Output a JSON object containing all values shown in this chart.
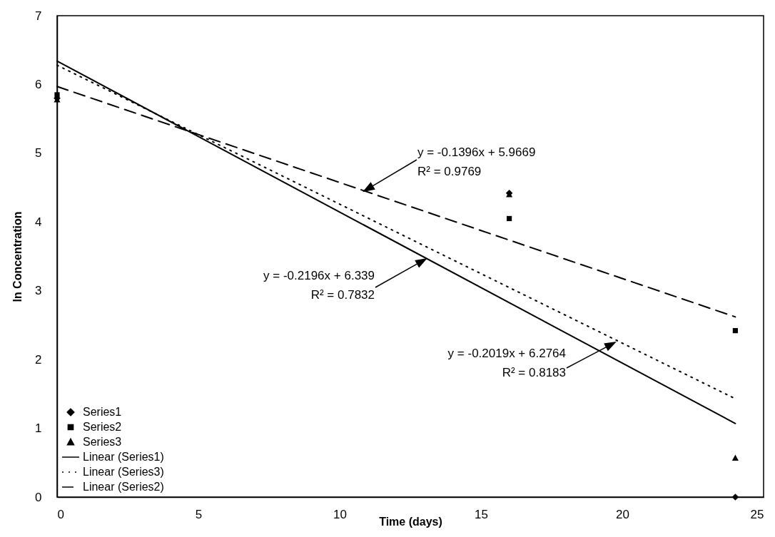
{
  "chart_data": {
    "type": "scatter",
    "xlabel": "Time (days)",
    "ylabel": "ln Concentration",
    "xlim": [
      0,
      25
    ],
    "xticks": [
      0,
      5,
      10,
      15,
      20,
      25
    ],
    "ylim": [
      0,
      7
    ],
    "yticks": [
      0,
      1,
      2,
      3,
      4,
      5,
      6,
      7
    ],
    "grid": false,
    "legend": "bottom left",
    "series": [
      {
        "name": "Series1",
        "marker": "diamond",
        "color": "#000000",
        "x": [
          0,
          16,
          24
        ],
        "values": [
          5.8,
          4.42,
          0
        ]
      },
      {
        "name": "Series2",
        "marker": "square",
        "color": "#000000",
        "x": [
          0,
          16,
          24
        ],
        "values": [
          5.85,
          4.05,
          2.42
        ]
      },
      {
        "name": "Series3",
        "marker": "triangle",
        "color": "#000000",
        "x": [
          0,
          16,
          24
        ],
        "values": [
          5.78,
          4.4,
          0.57
        ]
      },
      {
        "name": "Linear (Series1)",
        "type": "line",
        "line_style": "solid",
        "color": "#000000",
        "x": [
          0,
          24
        ],
        "values": [
          6.34,
          1.07
        ]
      },
      {
        "name": "Linear (Series3)",
        "type": "line",
        "line_style": "dotted",
        "color": "#000000",
        "x": [
          0,
          24
        ],
        "values": [
          6.28,
          1.43
        ]
      },
      {
        "name": "Linear (Series2)",
        "type": "line",
        "line_style": "dashed",
        "color": "#000000",
        "x": [
          0,
          24
        ],
        "values": [
          5.97,
          2.62
        ]
      }
    ],
    "annotations": [
      "y = -0.1396x + 5.9669\nR² = 0.9769",
      "y = -0.2196x + 6.339\nR² = 0.7832",
      "y = -0.2019x + 6.2764\nR² = 0.8183"
    ]
  }
}
